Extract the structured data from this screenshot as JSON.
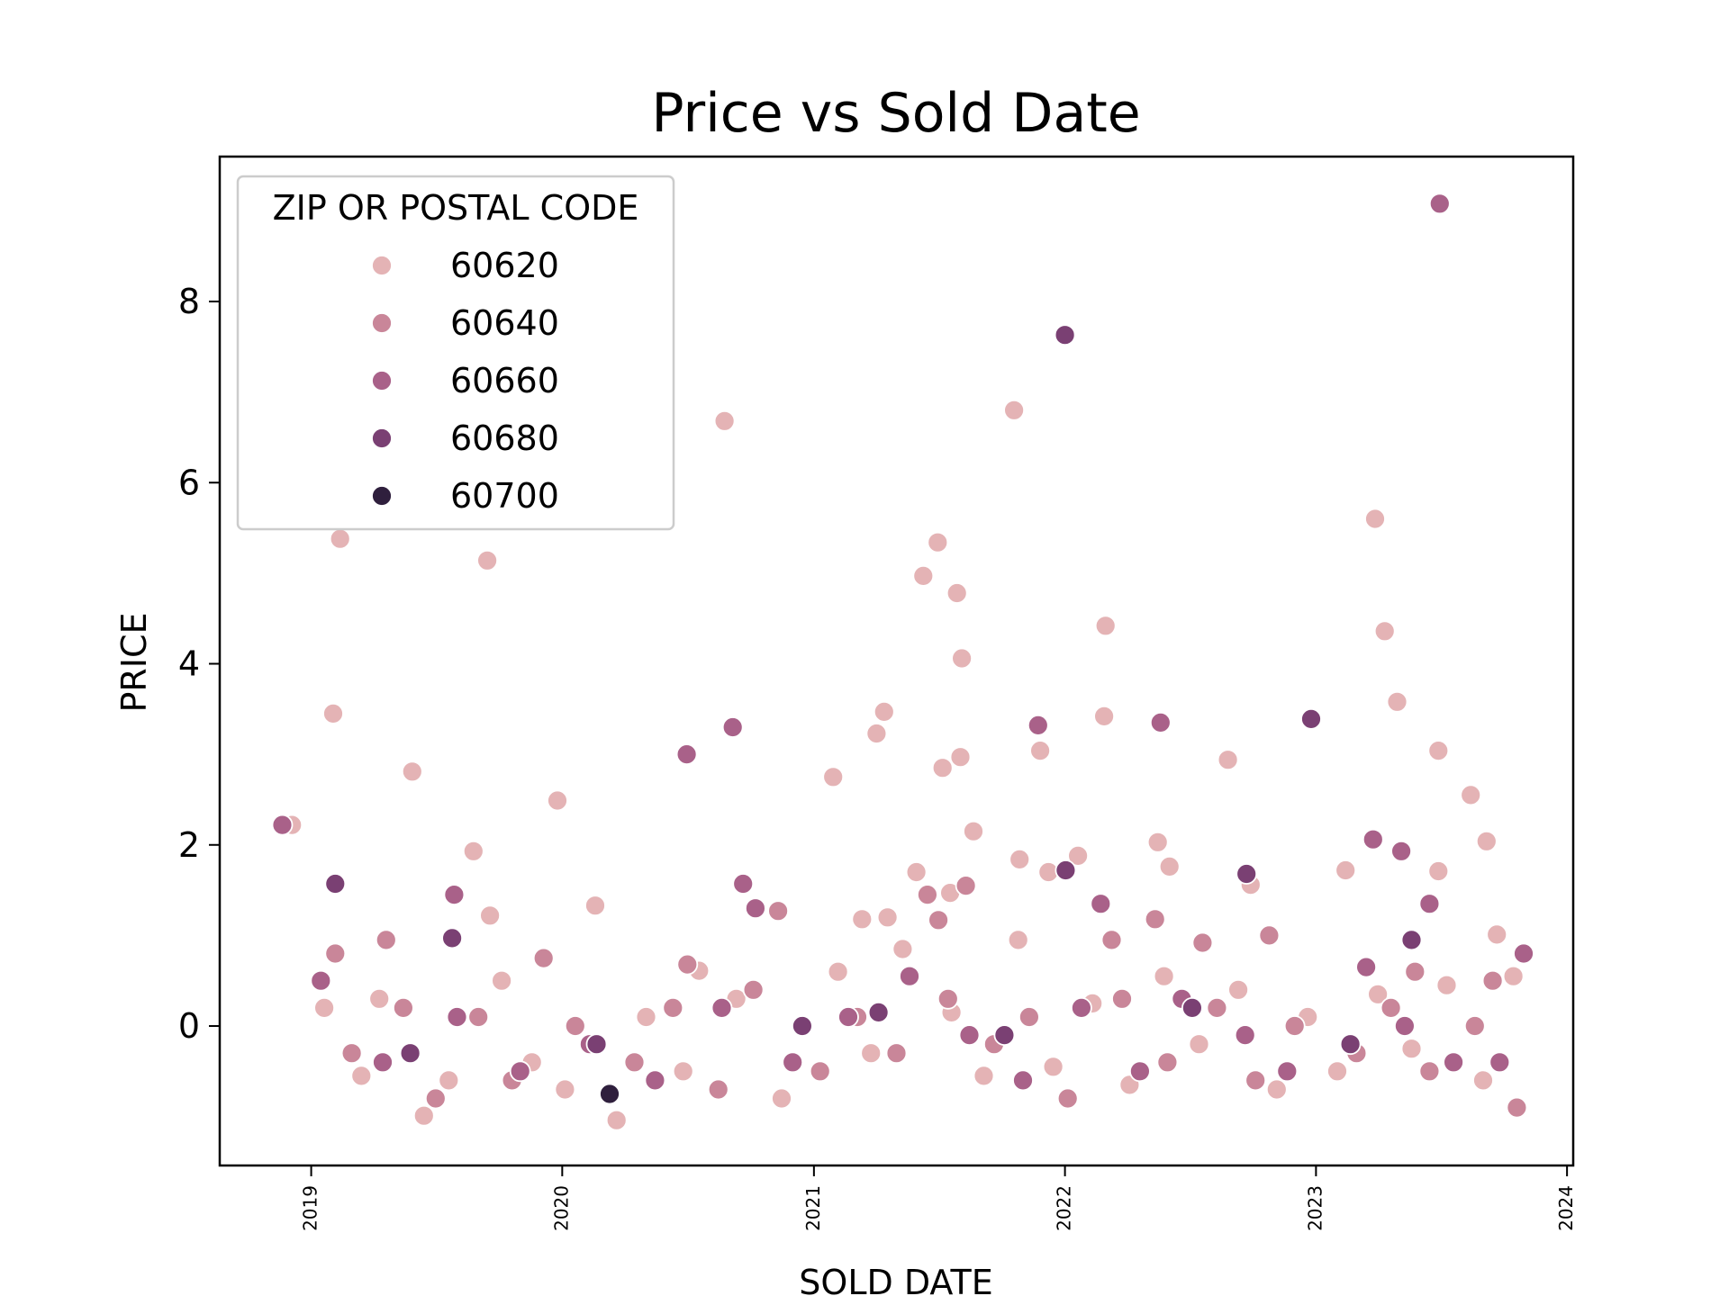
{
  "chart_data": {
    "type": "scatter",
    "title": "Price vs Sold Date",
    "xlabel": "SOLD DATE",
    "ylabel": "PRICE",
    "xlim": [
      "2018-08-21",
      "2024-01-10"
    ],
    "ylim": [
      -1.54,
      9.6
    ],
    "x_ticks": [
      "2019",
      "2020",
      "2021",
      "2022",
      "2023",
      "2024"
    ],
    "y_ticks": [
      0,
      2,
      4,
      6,
      8
    ],
    "grid": false,
    "legend": {
      "title": "ZIP OR POSTAL CODE",
      "placement": "top-left",
      "entries": [
        "60620",
        "60640",
        "60660",
        "60680",
        "60700"
      ],
      "colors": [
        "#e4b3b5",
        "#c98699",
        "#a96189",
        "#7a4073",
        "#2f1f3d"
      ]
    },
    "series": [
      {
        "name": "60620",
        "color": "#e4b3b5",
        "points": [
          [
            "2018-12-04",
            2.22
          ],
          [
            "2019-02-02",
            3.45
          ],
          [
            "2019-02-12",
            5.38
          ],
          [
            "2019-05-28",
            2.81
          ],
          [
            "2019-08-25",
            1.93
          ],
          [
            "2019-09-14",
            5.14
          ],
          [
            "2019-09-18",
            1.22
          ],
          [
            "2019-12-25",
            2.49
          ],
          [
            "2020-02-18",
            1.33
          ],
          [
            "2020-08-24",
            6.68
          ],
          [
            "2020-07-18",
            0.61
          ],
          [
            "2021-01-29",
            2.75
          ],
          [
            "2021-03-12",
            1.18
          ],
          [
            "2021-04-02",
            3.23
          ],
          [
            "2021-04-13",
            3.47
          ],
          [
            "2021-04-18",
            1.2
          ],
          [
            "2021-05-30",
            1.7
          ],
          [
            "2021-06-09",
            4.97
          ],
          [
            "2021-06-30",
            5.34
          ],
          [
            "2021-07-07",
            2.85
          ],
          [
            "2021-07-18",
            1.47
          ],
          [
            "2021-07-28",
            4.78
          ],
          [
            "2021-08-02",
            2.97
          ],
          [
            "2021-08-04",
            4.06
          ],
          [
            "2021-08-21",
            2.15
          ],
          [
            "2021-10-19",
            6.8
          ],
          [
            "2021-10-27",
            1.84
          ],
          [
            "2021-11-26",
            3.04
          ],
          [
            "2021-12-08",
            1.7
          ],
          [
            "2022-01-20",
            1.88
          ],
          [
            "2022-02-27",
            3.42
          ],
          [
            "2022-03-01",
            4.42
          ],
          [
            "2022-05-16",
            2.03
          ],
          [
            "2022-06-02",
            1.76
          ],
          [
            "2022-08-26",
            2.94
          ],
          [
            "2022-09-28",
            1.56
          ],
          [
            "2023-02-13",
            1.72
          ],
          [
            "2023-03-28",
            5.6
          ],
          [
            "2023-04-11",
            4.36
          ],
          [
            "2023-04-29",
            3.58
          ],
          [
            "2023-06-28",
            3.04
          ],
          [
            "2023-06-28",
            1.71
          ],
          [
            "2023-08-14",
            2.55
          ],
          [
            "2023-09-06",
            2.04
          ],
          [
            "2023-09-21",
            1.01
          ],
          [
            "2019-01-20",
            0.2
          ],
          [
            "2019-03-15",
            -0.55
          ],
          [
            "2019-04-10",
            0.3
          ],
          [
            "2019-06-14",
            -0.99
          ],
          [
            "2019-07-20",
            -0.6
          ],
          [
            "2019-10-05",
            0.5
          ],
          [
            "2019-11-18",
            -0.4
          ],
          [
            "2020-01-05",
            -0.7
          ],
          [
            "2020-03-20",
            -1.04
          ],
          [
            "2020-05-02",
            0.1
          ],
          [
            "2020-06-25",
            -0.5
          ],
          [
            "2020-09-10",
            0.3
          ],
          [
            "2020-11-15",
            -0.8
          ],
          [
            "2021-02-05",
            0.6
          ],
          [
            "2021-03-25",
            -0.3
          ],
          [
            "2021-05-10",
            0.85
          ],
          [
            "2021-07-20",
            0.15
          ],
          [
            "2021-09-05",
            -0.55
          ],
          [
            "2021-10-25",
            0.95
          ],
          [
            "2021-12-15",
            -0.45
          ],
          [
            "2022-02-10",
            0.25
          ],
          [
            "2022-04-05",
            -0.65
          ],
          [
            "2022-05-25",
            0.55
          ],
          [
            "2022-07-15",
            -0.2
          ],
          [
            "2022-09-10",
            0.4
          ],
          [
            "2022-11-05",
            -0.7
          ],
          [
            "2022-12-20",
            0.1
          ],
          [
            "2023-02-01",
            -0.5
          ],
          [
            "2023-04-01",
            0.35
          ],
          [
            "2023-05-20",
            -0.25
          ],
          [
            "2023-07-10",
            0.45
          ],
          [
            "2023-09-01",
            -0.6
          ],
          [
            "2023-10-15",
            0.55
          ]
        ]
      },
      {
        "name": "60640",
        "color": "#c98699",
        "points": [
          [
            "2019-02-05",
            0.8
          ],
          [
            "2019-04-20",
            0.95
          ],
          [
            "2019-12-05",
            0.75
          ],
          [
            "2020-07-01",
            0.68
          ],
          [
            "2020-11-10",
            1.27
          ],
          [
            "2021-06-15",
            1.45
          ],
          [
            "2021-07-01",
            1.17
          ],
          [
            "2021-08-10",
            1.55
          ],
          [
            "2022-03-10",
            0.95
          ],
          [
            "2022-05-12",
            1.18
          ],
          [
            "2022-07-20",
            0.92
          ],
          [
            "2022-10-25",
            1.0
          ],
          [
            "2023-05-25",
            0.6
          ],
          [
            "2023-09-15",
            0.5
          ],
          [
            "2019-03-01",
            -0.3
          ],
          [
            "2019-05-15",
            0.2
          ],
          [
            "2019-07-01",
            -0.8
          ],
          [
            "2019-09-01",
            0.1
          ],
          [
            "2019-10-20",
            -0.6
          ],
          [
            "2020-01-20",
            0.0
          ],
          [
            "2020-04-15",
            -0.4
          ],
          [
            "2020-06-10",
            0.2
          ],
          [
            "2020-08-15",
            -0.7
          ],
          [
            "2020-10-05",
            0.4
          ],
          [
            "2021-01-10",
            -0.5
          ],
          [
            "2021-03-05",
            0.1
          ],
          [
            "2021-05-01",
            -0.3
          ],
          [
            "2021-07-15",
            0.3
          ],
          [
            "2021-09-20",
            -0.2
          ],
          [
            "2021-11-10",
            0.1
          ],
          [
            "2022-01-05",
            -0.8
          ],
          [
            "2022-03-25",
            0.3
          ],
          [
            "2022-05-30",
            -0.4
          ],
          [
            "2022-08-10",
            0.2
          ],
          [
            "2022-10-05",
            -0.6
          ],
          [
            "2022-12-01",
            0.0
          ],
          [
            "2023-03-01",
            -0.3
          ],
          [
            "2023-04-20",
            0.2
          ],
          [
            "2023-06-15",
            -0.5
          ],
          [
            "2023-08-20",
            0.0
          ],
          [
            "2023-10-20",
            -0.9
          ]
        ]
      },
      {
        "name": "60660",
        "color": "#a96189",
        "points": [
          [
            "2018-11-20",
            2.22
          ],
          [
            "2019-07-28",
            1.45
          ],
          [
            "2020-06-30",
            3.0
          ],
          [
            "2020-09-05",
            3.3
          ],
          [
            "2020-09-20",
            1.57
          ],
          [
            "2020-10-08",
            1.3
          ],
          [
            "2021-11-23",
            3.32
          ],
          [
            "2022-02-22",
            1.35
          ],
          [
            "2022-05-20",
            3.35
          ],
          [
            "2023-03-25",
            2.06
          ],
          [
            "2023-05-05",
            1.93
          ],
          [
            "2023-06-15",
            1.35
          ],
          [
            "2023-06-30",
            9.08
          ],
          [
            "2019-01-15",
            0.5
          ],
          [
            "2019-04-15",
            -0.4
          ],
          [
            "2019-08-01",
            0.1
          ],
          [
            "2019-11-01",
            -0.5
          ],
          [
            "2020-02-10",
            -0.2
          ],
          [
            "2020-05-15",
            -0.6
          ],
          [
            "2020-08-20",
            0.2
          ],
          [
            "2020-12-01",
            -0.4
          ],
          [
            "2021-02-20",
            0.1
          ],
          [
            "2021-05-20",
            0.55
          ],
          [
            "2021-08-15",
            -0.1
          ],
          [
            "2021-11-01",
            -0.6
          ],
          [
            "2022-01-25",
            0.2
          ],
          [
            "2022-04-20",
            -0.5
          ],
          [
            "2022-06-20",
            0.3
          ],
          [
            "2022-09-20",
            -0.1
          ],
          [
            "2022-11-20",
            -0.5
          ],
          [
            "2023-03-15",
            0.65
          ],
          [
            "2023-05-10",
            0.0
          ],
          [
            "2023-07-20",
            -0.4
          ],
          [
            "2023-09-25",
            -0.4
          ],
          [
            "2023-10-30",
            0.8
          ]
        ]
      },
      {
        "name": "60680",
        "color": "#7a4073",
        "points": [
          [
            "2019-02-05",
            1.57
          ],
          [
            "2019-07-25",
            0.97
          ],
          [
            "2022-01-01",
            7.63
          ],
          [
            "2022-01-02",
            1.72
          ],
          [
            "2022-09-22",
            1.68
          ],
          [
            "2022-12-25",
            3.39
          ],
          [
            "2023-05-20",
            0.95
          ],
          [
            "2019-05-25",
            -0.3
          ],
          [
            "2020-02-20",
            -0.2
          ],
          [
            "2020-12-15",
            0.0
          ],
          [
            "2021-04-05",
            0.15
          ],
          [
            "2021-10-05",
            -0.1
          ],
          [
            "2022-07-05",
            0.2
          ],
          [
            "2023-02-20",
            -0.2
          ]
        ]
      },
      {
        "name": "60700",
        "color": "#2f1f3d",
        "points": [
          [
            "2020-03-10",
            -0.75
          ]
        ]
      }
    ]
  }
}
